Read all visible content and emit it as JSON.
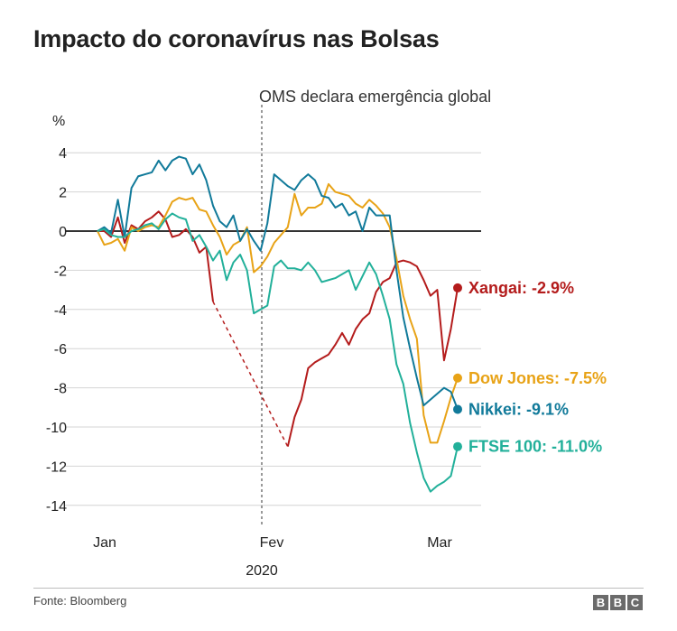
{
  "chart_data": {
    "type": "line",
    "title": "Impacto do coronavírus nas Bolsas",
    "ylabel": "%",
    "ylim": [
      -15,
      5
    ],
    "yticks": [
      4,
      2,
      0,
      -2,
      -4,
      -6,
      -8,
      -10,
      -12,
      -14
    ],
    "x_tick_labels": [
      "Jan",
      "Fev",
      "Mar"
    ],
    "year_label": "2020",
    "annotation": "OMS declara emergência global",
    "grid": true,
    "series": [
      {
        "name": "Xangai",
        "end_label": "Xangai: -2.9%",
        "color": "#b41c1c",
        "values": [
          0,
          0,
          -0.3,
          0.7,
          -0.6,
          0.3,
          0.1,
          0.5,
          0.7,
          1.0,
          0.6,
          -0.3,
          -0.2,
          0.1,
          -0.3,
          -1.1,
          -0.8,
          -3.6,
          null,
          null,
          null,
          null,
          null,
          null,
          null,
          null,
          null,
          null,
          -11.0,
          -9.5,
          -8.6,
          -7.0,
          -6.7,
          -6.5,
          -6.3,
          -5.8,
          -5.2,
          -5.8,
          -5.0,
          -4.5,
          -4.2,
          -3.1,
          -2.6,
          -2.4,
          -1.6,
          -1.5,
          -1.6,
          -1.8,
          -2.5,
          -3.3,
          -3.0,
          -6.6,
          -5.0,
          -2.9
        ],
        "gap": {
          "from_index": 17,
          "to_index": 28
        }
      },
      {
        "name": "Dow Jones",
        "end_label": "Dow Jones: -7.5%",
        "color": "#e8a317",
        "values": [
          0,
          -0.7,
          -0.6,
          -0.4,
          -1.0,
          0.2,
          0.0,
          0.2,
          0.3,
          0.2,
          0.8,
          1.5,
          1.7,
          1.6,
          1.7,
          1.1,
          1.0,
          0.3,
          -0.3,
          -1.2,
          -0.7,
          -0.5,
          0.2,
          -2.1,
          -1.8,
          -1.3,
          -0.6,
          -0.2,
          0.2,
          1.9,
          0.8,
          1.2,
          1.2,
          1.4,
          2.4,
          2.0,
          1.9,
          1.8,
          1.4,
          1.2,
          1.6,
          1.3,
          0.9,
          0.2,
          -1.4,
          -3.3,
          -4.5,
          -5.5,
          -9.4,
          -10.8,
          -10.8,
          -9.7,
          -8.5,
          -7.5
        ]
      },
      {
        "name": "Nikkei",
        "end_label": "Nikkei: -9.1%",
        "color": "#117a9a",
        "values": [
          0,
          0.2,
          -0.1,
          1.6,
          -0.3,
          2.2,
          2.8,
          2.9,
          3.0,
          3.6,
          3.1,
          3.6,
          3.8,
          3.7,
          2.9,
          3.4,
          2.6,
          1.3,
          0.5,
          0.2,
          0.8,
          -0.5,
          0.1,
          -0.5,
          -1.0,
          0.4,
          2.9,
          2.6,
          2.3,
          2.1,
          2.6,
          2.9,
          2.6,
          1.8,
          1.7,
          1.2,
          1.4,
          0.8,
          1.0,
          0.0,
          1.2,
          0.8,
          0.8,
          0.8,
          -2.0,
          -4.4,
          -6.0,
          -7.5,
          -8.9,
          -8.6,
          -8.3,
          -8.0,
          -8.2,
          -9.1
        ]
      },
      {
        "name": "FTSE 100",
        "end_label": "FTSE 100: -11.0%",
        "color": "#22b09a",
        "values": [
          0,
          0.1,
          -0.2,
          -0.3,
          -0.3,
          0.0,
          0.1,
          0.3,
          0.4,
          0.1,
          0.6,
          0.9,
          0.7,
          0.6,
          -0.5,
          -0.2,
          -0.8,
          -1.5,
          -1.0,
          -2.5,
          -1.6,
          -1.2,
          -2.0,
          -4.2,
          -4.0,
          -3.8,
          -1.8,
          -1.5,
          -1.9,
          -1.9,
          -2.0,
          -1.6,
          -2.0,
          -2.6,
          -2.5,
          -2.4,
          -2.2,
          -2.0,
          -3.0,
          -2.3,
          -1.6,
          -2.2,
          -3.3,
          -4.5,
          -6.8,
          -7.8,
          -9.8,
          -11.3,
          -12.6,
          -13.3,
          -13.0,
          -12.8,
          -12.5,
          -11.0
        ]
      }
    ]
  },
  "source": "Fonte: Bloomberg",
  "brand_letters": [
    "B",
    "B",
    "C"
  ]
}
